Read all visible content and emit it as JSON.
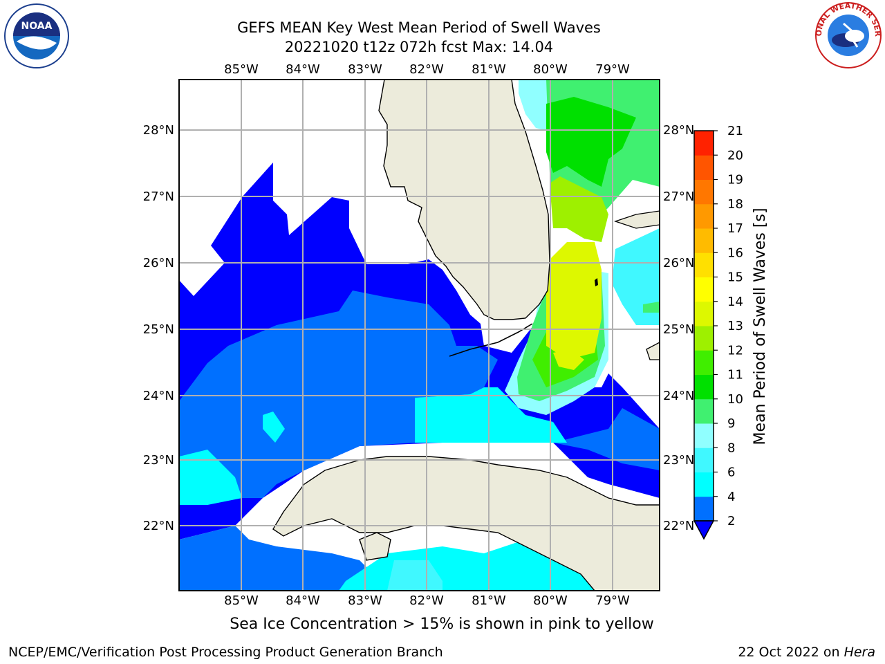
{
  "title": {
    "line1": "GEFS MEAN Key West Mean Period of Swell Waves",
    "line2": "20221020 t12z 072h fcst   Max: 14.04"
  },
  "map": {
    "lon_labels": [
      "85°W",
      "84°W",
      "83°W",
      "82°W",
      "81°W",
      "80°W",
      "79°W"
    ],
    "lat_labels": [
      "28°N",
      "27°N",
      "26°N",
      "25°N",
      "24°N",
      "23°N",
      "22°N"
    ],
    "land_color": "#ecebdb",
    "regions": [
      "Florida",
      "Cuba",
      "Bahamas"
    ]
  },
  "colorbar": {
    "label": "Mean Period of Swell Waves [s]",
    "ticks": [
      "2",
      "4",
      "6",
      "8",
      "9",
      "10",
      "11",
      "12",
      "13",
      "14",
      "15",
      "16",
      "17",
      "18",
      "19",
      "20",
      "21"
    ],
    "colors": [
      "#0070ff",
      "#00ffff",
      "#40f8ff",
      "#90ffff",
      "#40f070",
      "#00e000",
      "#40ee00",
      "#9ef000",
      "#ddf800",
      "#ffff00",
      "#ffe000",
      "#ffbb00",
      "#ff9900",
      "#ff7700",
      "#ff5500",
      "#ff2200",
      "#ff0000"
    ],
    "under_color": "#0000ff"
  },
  "note": "Sea Ice Concentration > 15% is shown in pink to yellow",
  "footer": {
    "credit": "NCEP/EMC/Verification Post Processing Product Generation Branch",
    "date": "22 Oct 2022 on",
    "host": "Hera"
  },
  "logos": {
    "noaa": "NOAA",
    "noaa_ring": "NATIONAL OCEANIC AND ATMOSPHERIC ADMINISTRATION · U.S. DEPARTMENT OF COMMERCE",
    "nws_ring": "NATIONAL WEATHER SERVICE"
  }
}
